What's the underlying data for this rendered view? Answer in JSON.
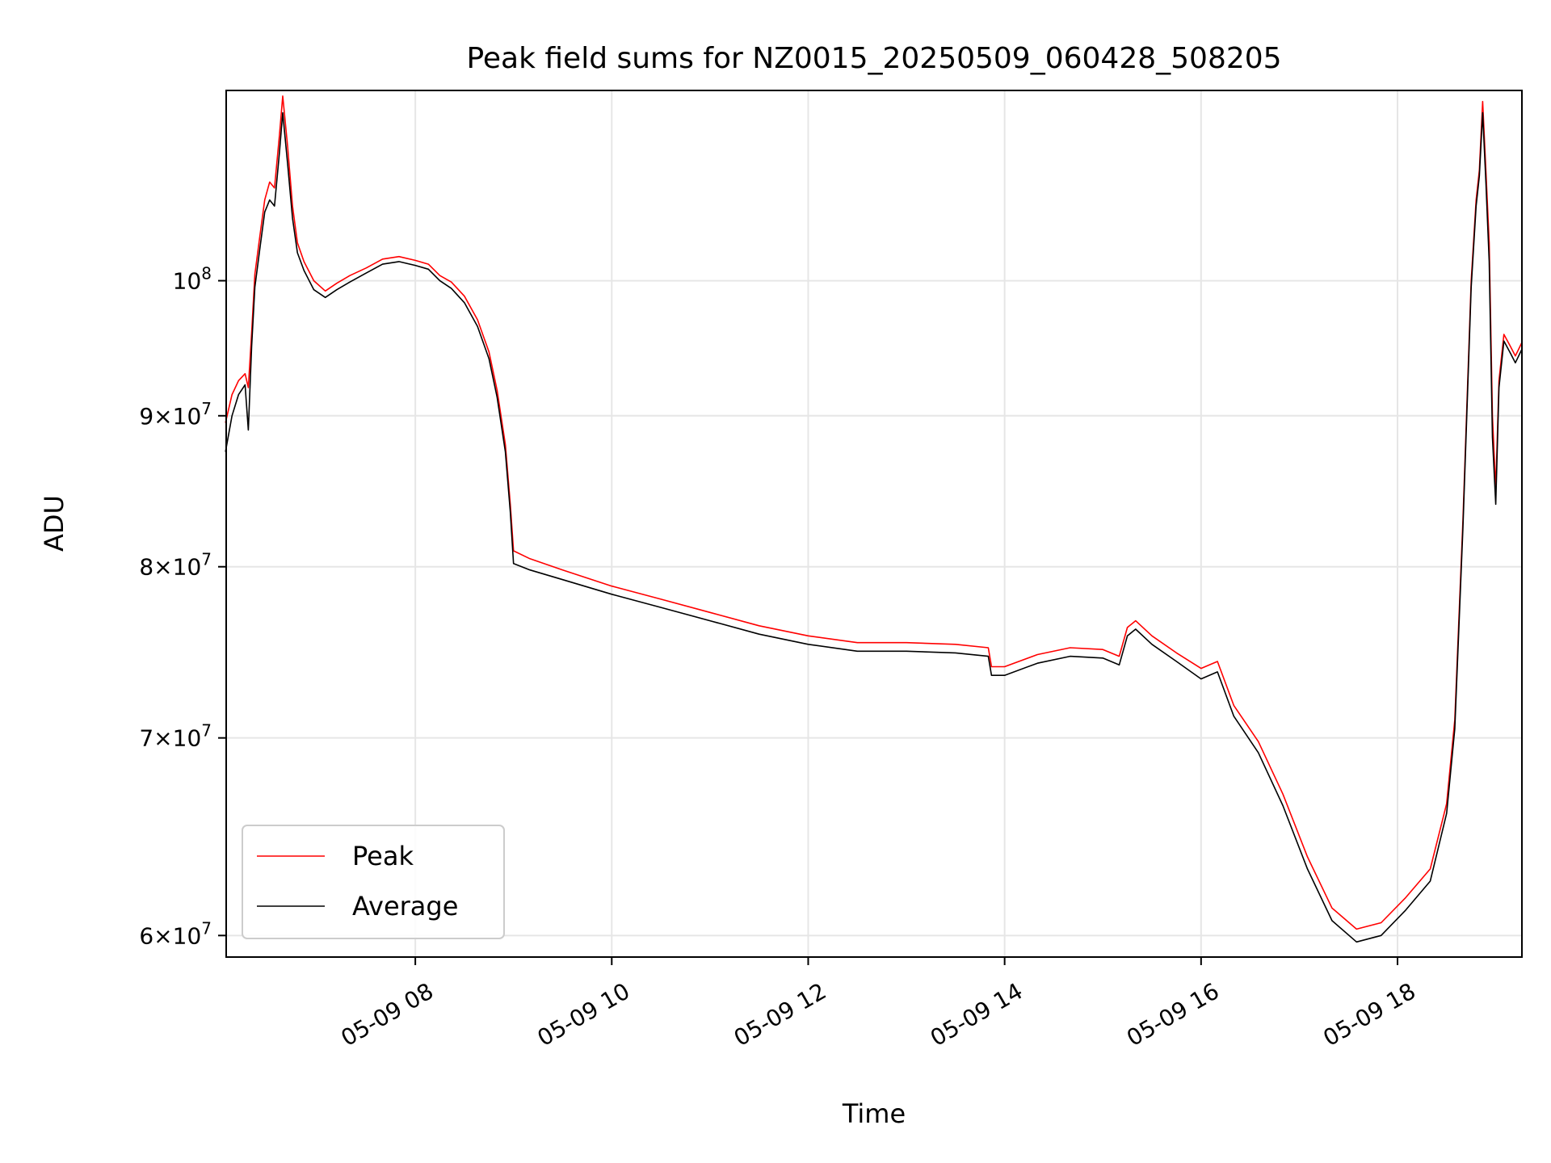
{
  "chart_data": {
    "type": "line",
    "title": "Peak field sums for NZ0015_20250509_060428_508205",
    "xlabel": "Time",
    "ylabel": "ADU",
    "x_range": [
      "2025-05-09 06:04:28",
      "2025-05-09 19:16:00"
    ],
    "ylim": [
      59000000,
      116000000
    ],
    "y_scale": "log",
    "grid": true,
    "legend_position": "lower-left",
    "x_ticks": [
      {
        "value": "2025-05-09 08:00",
        "label": "05-09 08"
      },
      {
        "value": "2025-05-09 10:00",
        "label": "05-09 10"
      },
      {
        "value": "2025-05-09 12:00",
        "label": "05-09 12"
      },
      {
        "value": "2025-05-09 14:00",
        "label": "05-09 14"
      },
      {
        "value": "2025-05-09 16:00",
        "label": "05-09 16"
      },
      {
        "value": "2025-05-09 18:00",
        "label": "05-09 18"
      }
    ],
    "y_ticks": [
      {
        "value": 60000000,
        "mantissa": "6",
        "base": "10",
        "exp": "7",
        "times": "×"
      },
      {
        "value": 70000000,
        "mantissa": "7",
        "base": "10",
        "exp": "7",
        "times": "×"
      },
      {
        "value": 80000000,
        "mantissa": "8",
        "base": "10",
        "exp": "7",
        "times": "×"
      },
      {
        "value": 90000000,
        "mantissa": "9",
        "base": "10",
        "exp": "7",
        "times": "×"
      },
      {
        "value": 100000000,
        "mantissa": "",
        "base": "10",
        "exp": "8",
        "times": ""
      }
    ],
    "series": [
      {
        "name": "Peak",
        "color": "#ff0000",
        "points": [
          [
            "2025-05-09 06:04",
            89500000
          ],
          [
            "2025-05-09 06:08",
            91500000
          ],
          [
            "2025-05-09 06:12",
            92500000
          ],
          [
            "2025-05-09 06:16",
            93000000
          ],
          [
            "2025-05-09 06:18",
            92000000
          ],
          [
            "2025-05-09 06:20",
            96000000
          ],
          [
            "2025-05-09 06:22",
            100500000
          ],
          [
            "2025-05-09 06:25",
            103500000
          ],
          [
            "2025-05-09 06:28",
            106500000
          ],
          [
            "2025-05-09 06:31",
            108000000
          ],
          [
            "2025-05-09 06:34",
            107500000
          ],
          [
            "2025-05-09 06:37",
            112000000
          ],
          [
            "2025-05-09 06:39",
            115500000
          ],
          [
            "2025-05-09 06:42",
            111000000
          ],
          [
            "2025-05-09 06:45",
            106000000
          ],
          [
            "2025-05-09 06:48",
            103000000
          ],
          [
            "2025-05-09 06:52",
            101500000
          ],
          [
            "2025-05-09 06:58",
            100000000
          ],
          [
            "2025-05-09 07:05",
            99200000
          ],
          [
            "2025-05-09 07:12",
            99800000
          ],
          [
            "2025-05-09 07:20",
            100400000
          ],
          [
            "2025-05-09 07:30",
            101000000
          ],
          [
            "2025-05-09 07:40",
            101700000
          ],
          [
            "2025-05-09 07:50",
            101900000
          ],
          [
            "2025-05-09 08:00",
            101600000
          ],
          [
            "2025-05-09 08:08",
            101300000
          ],
          [
            "2025-05-09 08:15",
            100400000
          ],
          [
            "2025-05-09 08:22",
            99900000
          ],
          [
            "2025-05-09 08:30",
            98800000
          ],
          [
            "2025-05-09 08:38",
            97000000
          ],
          [
            "2025-05-09 08:45",
            94600000
          ],
          [
            "2025-05-09 08:50",
            91800000
          ],
          [
            "2025-05-09 08:55",
            88000000
          ],
          [
            "2025-05-09 08:58",
            84000000
          ],
          [
            "2025-05-09 09:00",
            81000000
          ],
          [
            "2025-05-09 09:10",
            80500000
          ],
          [
            "2025-05-09 09:30",
            79800000
          ],
          [
            "2025-05-09 10:00",
            78800000
          ],
          [
            "2025-05-09 10:30",
            78000000
          ],
          [
            "2025-05-09 11:00",
            77200000
          ],
          [
            "2025-05-09 11:30",
            76400000
          ],
          [
            "2025-05-09 12:00",
            75800000
          ],
          [
            "2025-05-09 12:30",
            75400000
          ],
          [
            "2025-05-09 13:00",
            75400000
          ],
          [
            "2025-05-09 13:30",
            75300000
          ],
          [
            "2025-05-09 13:50",
            75100000
          ],
          [
            "2025-05-09 13:52",
            74000000
          ],
          [
            "2025-05-09 14:00",
            74000000
          ],
          [
            "2025-05-09 14:20",
            74700000
          ],
          [
            "2025-05-09 14:40",
            75100000
          ],
          [
            "2025-05-09 15:00",
            75000000
          ],
          [
            "2025-05-09 15:10",
            74600000
          ],
          [
            "2025-05-09 15:15",
            76300000
          ],
          [
            "2025-05-09 15:20",
            76700000
          ],
          [
            "2025-05-09 15:30",
            75800000
          ],
          [
            "2025-05-09 15:45",
            74800000
          ],
          [
            "2025-05-09 16:00",
            73900000
          ],
          [
            "2025-05-09 16:10",
            74300000
          ],
          [
            "2025-05-09 16:20",
            71800000
          ],
          [
            "2025-05-09 16:35",
            69800000
          ],
          [
            "2025-05-09 16:50",
            67000000
          ],
          [
            "2025-05-09 17:05",
            63800000
          ],
          [
            "2025-05-09 17:20",
            61300000
          ],
          [
            "2025-05-09 17:35",
            60300000
          ],
          [
            "2025-05-09 17:50",
            60600000
          ],
          [
            "2025-05-09 18:05",
            61800000
          ],
          [
            "2025-05-09 18:20",
            63200000
          ],
          [
            "2025-05-09 18:30",
            66500000
          ],
          [
            "2025-05-09 18:35",
            71000000
          ],
          [
            "2025-05-09 18:40",
            83000000
          ],
          [
            "2025-05-09 18:45",
            100000000
          ],
          [
            "2025-05-09 18:48",
            106500000
          ],
          [
            "2025-05-09 18:50",
            109000000
          ],
          [
            "2025-05-09 18:52",
            115000000
          ],
          [
            "2025-05-09 18:54",
            109000000
          ],
          [
            "2025-05-09 18:56",
            103000000
          ],
          [
            "2025-05-09 18:58",
            90000000
          ],
          [
            "2025-05-09 19:00",
            85000000
          ],
          [
            "2025-05-09 19:02",
            92500000
          ],
          [
            "2025-05-09 19:05",
            95900000
          ],
          [
            "2025-05-09 19:09",
            95000000
          ],
          [
            "2025-05-09 19:12",
            94300000
          ],
          [
            "2025-05-09 19:16",
            95300000
          ]
        ]
      },
      {
        "name": "Average",
        "color": "#000000",
        "points": [
          [
            "2025-05-09 06:04",
            87500000
          ],
          [
            "2025-05-09 06:08",
            90000000
          ],
          [
            "2025-05-09 06:12",
            91500000
          ],
          [
            "2025-05-09 06:16",
            92200000
          ],
          [
            "2025-05-09 06:18",
            89000000
          ],
          [
            "2025-05-09 06:20",
            95000000
          ],
          [
            "2025-05-09 06:22",
            99500000
          ],
          [
            "2025-05-09 06:25",
            102500000
          ],
          [
            "2025-05-09 06:28",
            105500000
          ],
          [
            "2025-05-09 06:31",
            106500000
          ],
          [
            "2025-05-09 06:34",
            106000000
          ],
          [
            "2025-05-09 06:37",
            110500000
          ],
          [
            "2025-05-09 06:39",
            114000000
          ],
          [
            "2025-05-09 06:42",
            109500000
          ],
          [
            "2025-05-09 06:45",
            105000000
          ],
          [
            "2025-05-09 06:48",
            102200000
          ],
          [
            "2025-05-09 06:52",
            100800000
          ],
          [
            "2025-05-09 06:58",
            99300000
          ],
          [
            "2025-05-09 07:05",
            98700000
          ],
          [
            "2025-05-09 07:12",
            99300000
          ],
          [
            "2025-05-09 07:20",
            99900000
          ],
          [
            "2025-05-09 07:30",
            100600000
          ],
          [
            "2025-05-09 07:40",
            101300000
          ],
          [
            "2025-05-09 07:50",
            101500000
          ],
          [
            "2025-05-09 08:00",
            101200000
          ],
          [
            "2025-05-09 08:08",
            100900000
          ],
          [
            "2025-05-09 08:15",
            100000000
          ],
          [
            "2025-05-09 08:22",
            99400000
          ],
          [
            "2025-05-09 08:30",
            98300000
          ],
          [
            "2025-05-09 08:38",
            96500000
          ],
          [
            "2025-05-09 08:45",
            94100000
          ],
          [
            "2025-05-09 08:50",
            91300000
          ],
          [
            "2025-05-09 08:55",
            87500000
          ],
          [
            "2025-05-09 08:58",
            83500000
          ],
          [
            "2025-05-09 09:00",
            80200000
          ],
          [
            "2025-05-09 09:10",
            79800000
          ],
          [
            "2025-05-09 09:30",
            79200000
          ],
          [
            "2025-05-09 10:00",
            78300000
          ],
          [
            "2025-05-09 10:30",
            77500000
          ],
          [
            "2025-05-09 11:00",
            76700000
          ],
          [
            "2025-05-09 11:30",
            75900000
          ],
          [
            "2025-05-09 12:00",
            75300000
          ],
          [
            "2025-05-09 12:30",
            74900000
          ],
          [
            "2025-05-09 13:00",
            74900000
          ],
          [
            "2025-05-09 13:30",
            74800000
          ],
          [
            "2025-05-09 13:50",
            74600000
          ],
          [
            "2025-05-09 13:52",
            73500000
          ],
          [
            "2025-05-09 14:00",
            73500000
          ],
          [
            "2025-05-09 14:20",
            74200000
          ],
          [
            "2025-05-09 14:40",
            74600000
          ],
          [
            "2025-05-09 15:00",
            74500000
          ],
          [
            "2025-05-09 15:10",
            74100000
          ],
          [
            "2025-05-09 15:15",
            75800000
          ],
          [
            "2025-05-09 15:20",
            76200000
          ],
          [
            "2025-05-09 15:30",
            75300000
          ],
          [
            "2025-05-09 15:45",
            74300000
          ],
          [
            "2025-05-09 16:00",
            73300000
          ],
          [
            "2025-05-09 16:10",
            73700000
          ],
          [
            "2025-05-09 16:20",
            71200000
          ],
          [
            "2025-05-09 16:35",
            69200000
          ],
          [
            "2025-05-09 16:50",
            66400000
          ],
          [
            "2025-05-09 17:05",
            63200000
          ],
          [
            "2025-05-09 17:20",
            60700000
          ],
          [
            "2025-05-09 17:35",
            59700000
          ],
          [
            "2025-05-09 17:50",
            60000000
          ],
          [
            "2025-05-09 18:05",
            61200000
          ],
          [
            "2025-05-09 18:20",
            62600000
          ],
          [
            "2025-05-09 18:30",
            66000000
          ],
          [
            "2025-05-09 18:35",
            70500000
          ],
          [
            "2025-05-09 18:40",
            82500000
          ],
          [
            "2025-05-09 18:45",
            99500000
          ],
          [
            "2025-05-09 18:48",
            106000000
          ],
          [
            "2025-05-09 18:50",
            108500000
          ],
          [
            "2025-05-09 18:52",
            114000000
          ],
          [
            "2025-05-09 18:54",
            108000000
          ],
          [
            "2025-05-09 18:56",
            101500000
          ],
          [
            "2025-05-09 18:58",
            88500000
          ],
          [
            "2025-05-09 19:00",
            84000000
          ],
          [
            "2025-05-09 19:02",
            92000000
          ],
          [
            "2025-05-09 19:05",
            95400000
          ],
          [
            "2025-05-09 19:09",
            94500000
          ],
          [
            "2025-05-09 19:12",
            93800000
          ],
          [
            "2025-05-09 19:16",
            94800000
          ]
        ]
      }
    ]
  }
}
